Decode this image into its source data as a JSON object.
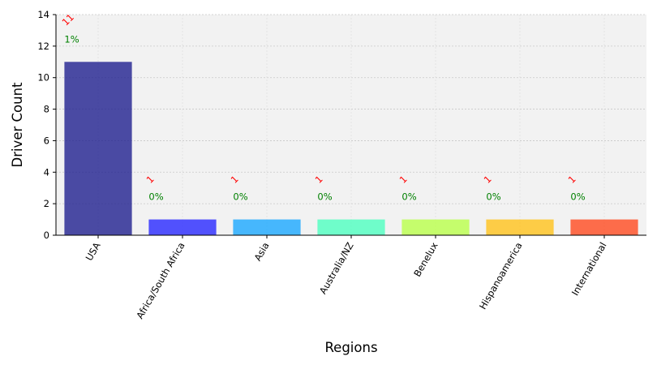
{
  "chart_data": {
    "type": "bar",
    "title": "",
    "xlabel": "Regions",
    "ylabel": "Driver Count",
    "categories": [
      "USA",
      "Africa/South Africa",
      "Asia",
      "Australia/NZ",
      "Benelux",
      "Hispanoamerica",
      "International"
    ],
    "values": [
      11,
      1,
      1,
      1,
      1,
      1,
      1
    ],
    "count_labels": [
      "11",
      "1",
      "1",
      "1",
      "1",
      "1",
      "1"
    ],
    "percent_labels": [
      "1%",
      "0%",
      "0%",
      "0%",
      "0%",
      "0%",
      "0%"
    ],
    "colors": [
      "#1f1f8f",
      "#2828ff",
      "#1aa7ff",
      "#4dffbf",
      "#b9ff4a",
      "#ffc21a",
      "#ff4a1f"
    ],
    "bar_opacity": 0.8,
    "ylim": [
      0,
      14
    ],
    "yticks": [
      0,
      2,
      4,
      6,
      8,
      10,
      12,
      14
    ],
    "grid": true,
    "background": "#f2f2f2",
    "legend": "none"
  }
}
